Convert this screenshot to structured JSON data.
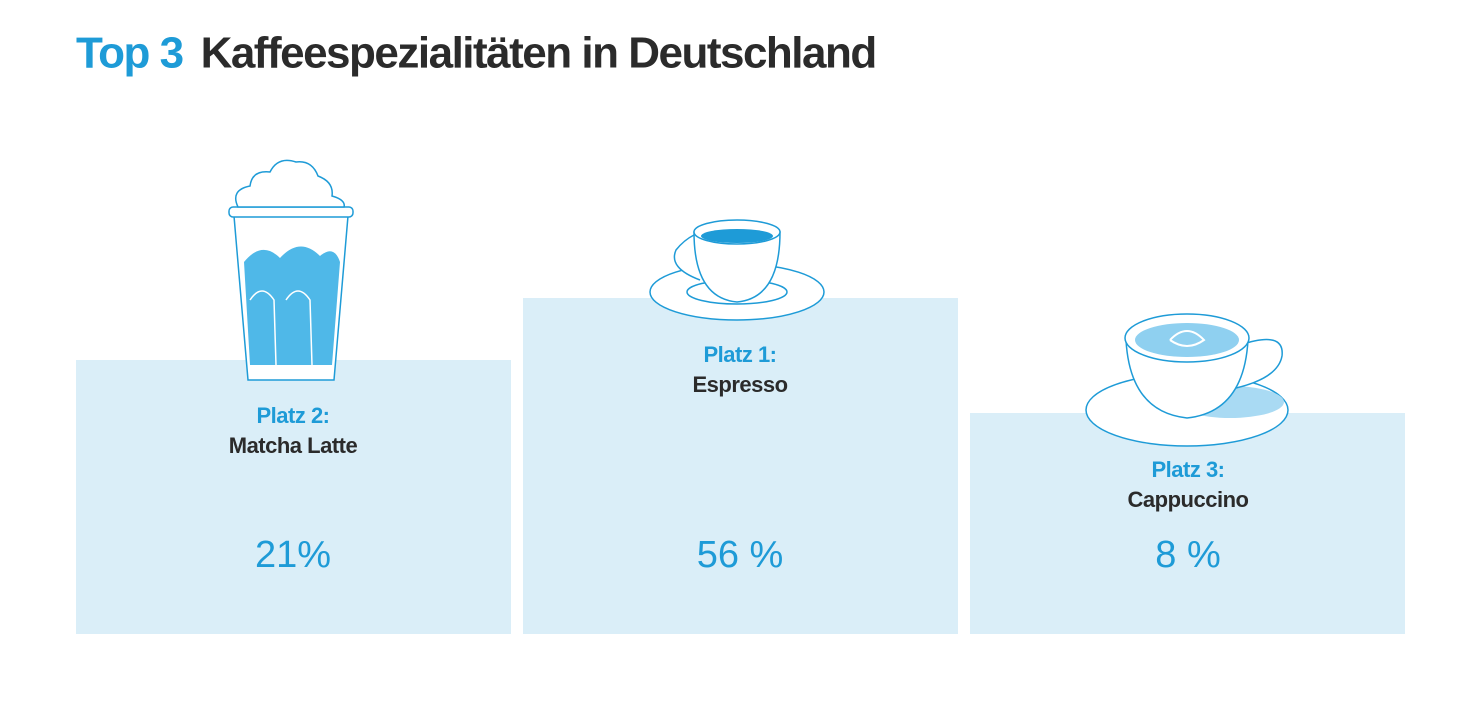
{
  "header": {
    "highlight": "Top 3",
    "title": "Kaffeespezialitäten in Deutschland"
  },
  "podium": [
    {
      "rank": "Platz 2:",
      "name": "Matcha Latte",
      "share": "21%"
    },
    {
      "rank": "Platz 1:",
      "name": "Espresso",
      "share": "56 %"
    },
    {
      "rank": "Platz 3:",
      "name": "Cappuccino",
      "share": "8 %"
    }
  ]
}
